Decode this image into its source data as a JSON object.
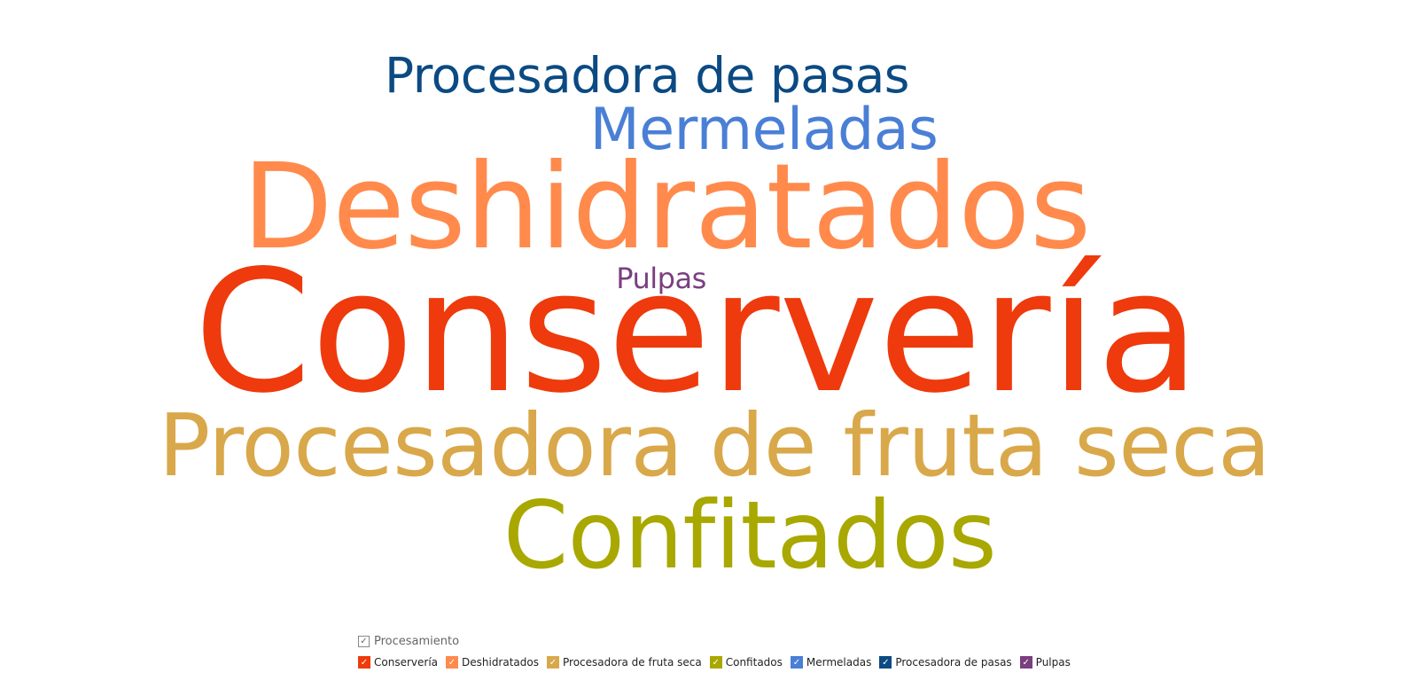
{
  "chart_data": {
    "type": "wordcloud",
    "legend_title": "Procesamiento",
    "words": [
      {
        "text": "Procesadora de pasas",
        "color": "#0B4A82",
        "weight": 34
      },
      {
        "text": "Mermeladas",
        "color": "#4A7FD6",
        "weight": 34
      },
      {
        "text": "Deshidratados",
        "color": "#FF8A4C",
        "weight": 78
      },
      {
        "text": "Pulpas",
        "color": "#7A3F7F",
        "weight": 17
      },
      {
        "text": "Conservería",
        "color": "#EE3A0C",
        "weight": 100
      },
      {
        "text": "Procesadora de fruta seca",
        "color": "#D9A84A",
        "weight": 60
      },
      {
        "text": "Confitados",
        "color": "#A8A800",
        "weight": 60
      }
    ],
    "legend": [
      {
        "label": "Conservería",
        "color": "#EE3A0C"
      },
      {
        "label": "Deshidratados",
        "color": "#FF8A4C"
      },
      {
        "label": "Procesadora de fruta seca",
        "color": "#D9A84A"
      },
      {
        "label": "Confitados",
        "color": "#A8A800"
      },
      {
        "label": "Mermeladas",
        "color": "#4A7FD6"
      },
      {
        "label": "Procesadora de pasas",
        "color": "#0B4A82"
      },
      {
        "label": "Pulpas",
        "color": "#7A3F7F"
      }
    ]
  }
}
